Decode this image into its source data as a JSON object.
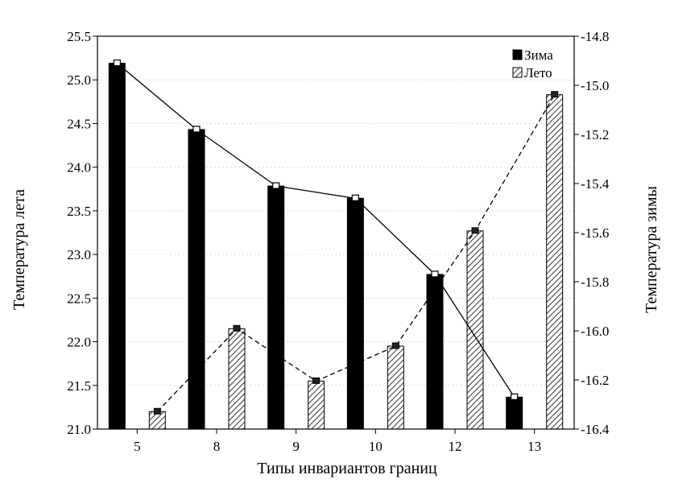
{
  "chart_data": {
    "type": "bar",
    "categories": [
      "5",
      "8",
      "9",
      "10",
      "12",
      "13"
    ],
    "xlabel": "Типы инвариантов границ",
    "ylabel": "Температура лета",
    "y2label": "Температура зимы",
    "ylim": [
      21.0,
      25.5
    ],
    "y2lim": [
      -16.4,
      -14.8
    ],
    "yticks": [
      "21.0",
      "21.5",
      "22.0",
      "22.5",
      "23.0",
      "23.5",
      "24.0",
      "24.5",
      "25.0",
      "25.5"
    ],
    "y2ticks": [
      "-16.4",
      "-16.2",
      "-16.0",
      "-15.8",
      "-15.6",
      "-15.4",
      "-15.2",
      "-15.0",
      "-14.8"
    ],
    "grid": true,
    "legend_position": "top-right",
    "series": [
      {
        "name": "Зима",
        "axis": "right",
        "style": "solid black bars + solid line",
        "values": [
          -14.91,
          -15.18,
          -15.41,
          -15.46,
          -15.77,
          -16.27
        ]
      },
      {
        "name": "Лето",
        "axis": "left",
        "style": "hatched bars + dashed line",
        "values": [
          21.2,
          22.15,
          21.55,
          21.95,
          23.27,
          24.83
        ]
      }
    ]
  }
}
